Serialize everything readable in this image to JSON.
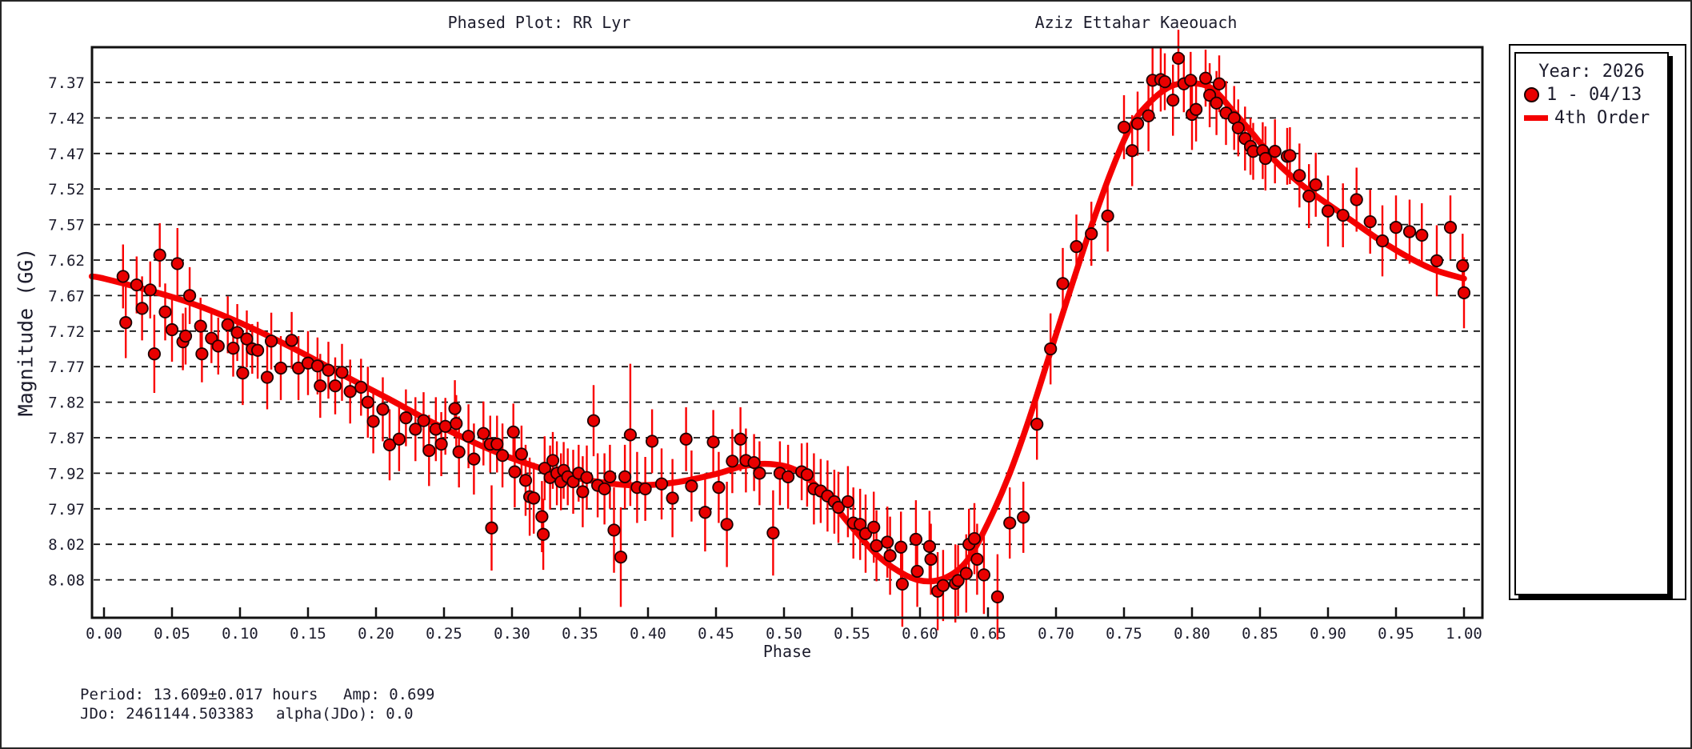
{
  "titles": {
    "left": "Phased Plot: RR Lyr",
    "right": "Aziz Ettahar Kaeouach"
  },
  "legend": {
    "year_label": "Year: 2026",
    "series_label": "1 - 04/13",
    "fit_label": "4th Order"
  },
  "footer": {
    "period": "Period: 13.609±0.017 hours",
    "amp": "Amp: 0.699",
    "jdo": "JDo: 2461144.503383",
    "alpha_jdo": "alpha(JDo): 0.0"
  },
  "colors": {
    "curve": "#f40000",
    "error_bar": "#fa0000",
    "marker_fill": "#e90000",
    "marker_edge": "#1c0000",
    "grid": "#141414",
    "axis": "#111111",
    "text": "#1c1c2c",
    "background": "#ffffff"
  },
  "chart_data": {
    "type": "scatter",
    "title": "Phased Plot: RR Lyr",
    "observer": "Aziz Ettahar Kaeouach",
    "xlabel": "Phase",
    "ylabel": "Magnitude (GG)",
    "y_axis_inverted": true,
    "grid": "dashed-horizontal",
    "legend_position": "right",
    "x_ticks": [
      "0.00",
      "0.05",
      "0.10",
      "0.15",
      "0.20",
      "0.25",
      "0.30",
      "0.35",
      "0.40",
      "0.45",
      "0.50",
      "0.55",
      "0.60",
      "0.65",
      "0.70",
      "0.75",
      "0.80",
      "0.85",
      "0.90",
      "0.95",
      "1.00"
    ],
    "y_ticks": [
      "7.37",
      "7.42",
      "7.47",
      "7.52",
      "7.57",
      "7.62",
      "7.67",
      "7.72",
      "7.77",
      "7.82",
      "7.87",
      "7.92",
      "7.97",
      "8.02",
      "8.08"
    ],
    "y_tick_start": 7.37,
    "y_tick_step": 0.05,
    "xlim": [
      -0.009,
      1.0135
    ],
    "ylim": [
      7.321,
      8.117
    ],
    "stats": {
      "period_hours": "13.609±0.017",
      "amp": 0.699,
      "jdo": 2461144.503383,
      "alpha_jdo": 0.0,
      "year": 2026,
      "series_date": "04/13"
    },
    "series": [
      {
        "name": "1 - 04/13",
        "points": [
          [
            0.014,
            7.643,
            0.045
          ],
          [
            0.016,
            7.708,
            0.05
          ],
          [
            0.024,
            7.655,
            0.04
          ],
          [
            0.028,
            7.688,
            0.045
          ],
          [
            0.034,
            7.662,
            0.04
          ],
          [
            0.037,
            7.752,
            0.055
          ],
          [
            0.041,
            7.613,
            0.045
          ],
          [
            0.045,
            7.693,
            0.04
          ],
          [
            0.05,
            7.718,
            0.045
          ],
          [
            0.054,
            7.625,
            0.05
          ],
          [
            0.058,
            7.735,
            0.04
          ],
          [
            0.06,
            7.727,
            0.04
          ],
          [
            0.063,
            7.67,
            0.04
          ],
          [
            0.071,
            7.713,
            0.04
          ],
          [
            0.072,
            7.752,
            0.04
          ],
          [
            0.079,
            7.73,
            0.035
          ],
          [
            0.084,
            7.741,
            0.04
          ],
          [
            0.091,
            7.711,
            0.04
          ],
          [
            0.095,
            7.744,
            0.04
          ],
          [
            0.098,
            7.722,
            0.04
          ],
          [
            0.102,
            7.779,
            0.045
          ],
          [
            0.105,
            7.731,
            0.04
          ],
          [
            0.109,
            7.745,
            0.035
          ],
          [
            0.113,
            7.747,
            0.04
          ],
          [
            0.12,
            7.785,
            0.045
          ],
          [
            0.123,
            7.734,
            0.04
          ],
          [
            0.13,
            7.772,
            0.045
          ],
          [
            0.138,
            7.733,
            0.04
          ],
          [
            0.143,
            7.772,
            0.045
          ],
          [
            0.15,
            7.765,
            0.045
          ],
          [
            0.157,
            7.769,
            0.04
          ],
          [
            0.159,
            7.797,
            0.045
          ],
          [
            0.165,
            7.775,
            0.04
          ],
          [
            0.17,
            7.797,
            0.04
          ],
          [
            0.175,
            7.778,
            0.04
          ],
          [
            0.181,
            7.805,
            0.045
          ],
          [
            0.189,
            7.799,
            0.04
          ],
          [
            0.194,
            7.82,
            0.05
          ],
          [
            0.198,
            7.847,
            0.045
          ],
          [
            0.205,
            7.83,
            0.045
          ],
          [
            0.21,
            7.88,
            0.05
          ],
          [
            0.217,
            7.872,
            0.045
          ],
          [
            0.222,
            7.842,
            0.04
          ],
          [
            0.229,
            7.858,
            0.045
          ],
          [
            0.235,
            7.846,
            0.04
          ],
          [
            0.239,
            7.888,
            0.05
          ],
          [
            0.244,
            7.858,
            0.045
          ],
          [
            0.248,
            7.879,
            0.045
          ],
          [
            0.251,
            7.854,
            0.04
          ],
          [
            0.258,
            7.829,
            0.04
          ],
          [
            0.259,
            7.85,
            0.04
          ],
          [
            0.261,
            7.89,
            0.05
          ],
          [
            0.268,
            7.868,
            0.045
          ],
          [
            0.272,
            7.9,
            0.05
          ],
          [
            0.279,
            7.864,
            0.045
          ],
          [
            0.284,
            7.879,
            0.04
          ],
          [
            0.285,
            7.997,
            0.06
          ],
          [
            0.289,
            7.879,
            0.04
          ],
          [
            0.293,
            7.895,
            0.045
          ],
          [
            0.301,
            7.862,
            0.04
          ],
          [
            0.302,
            7.918,
            0.05
          ],
          [
            0.307,
            7.893,
            0.04
          ],
          [
            0.31,
            7.93,
            0.05
          ],
          [
            0.313,
            7.953,
            0.055
          ],
          [
            0.316,
            7.955,
            0.05
          ],
          [
            0.322,
            7.981,
            0.05
          ],
          [
            0.323,
            8.006,
            0.05
          ],
          [
            0.324,
            7.913,
            0.045
          ],
          [
            0.328,
            7.926,
            0.045
          ],
          [
            0.33,
            7.902,
            0.04
          ],
          [
            0.333,
            7.92,
            0.045
          ],
          [
            0.336,
            7.932,
            0.04
          ],
          [
            0.338,
            7.916,
            0.04
          ],
          [
            0.341,
            7.925,
            0.04
          ],
          [
            0.345,
            7.932,
            0.045
          ],
          [
            0.349,
            7.92,
            0.04
          ],
          [
            0.352,
            7.946,
            0.05
          ],
          [
            0.355,
            7.926,
            0.045
          ],
          [
            0.36,
            7.846,
            0.05
          ],
          [
            0.363,
            7.937,
            0.045
          ],
          [
            0.368,
            7.942,
            0.05
          ],
          [
            0.372,
            7.925,
            0.045
          ],
          [
            0.375,
            8.0,
            0.06
          ],
          [
            0.38,
            8.038,
            0.07
          ],
          [
            0.383,
            7.925,
            0.045
          ],
          [
            0.387,
            7.866,
            0.1
          ],
          [
            0.392,
            7.94,
            0.05
          ],
          [
            0.398,
            7.942,
            0.045
          ],
          [
            0.403,
            7.875,
            0.045
          ],
          [
            0.41,
            7.935,
            0.05
          ],
          [
            0.418,
            7.955,
            0.055
          ],
          [
            0.428,
            7.872,
            0.045
          ],
          [
            0.432,
            7.938,
            0.05
          ],
          [
            0.442,
            7.975,
            0.055
          ],
          [
            0.448,
            7.876,
            0.045
          ],
          [
            0.452,
            7.94,
            0.05
          ],
          [
            0.458,
            7.992,
            0.06
          ],
          [
            0.462,
            7.903,
            0.045
          ],
          [
            0.468,
            7.872,
            0.045
          ],
          [
            0.472,
            7.902,
            0.045
          ],
          [
            0.478,
            7.905,
            0.04
          ],
          [
            0.482,
            7.92,
            0.045
          ],
          [
            0.492,
            8.004,
            0.06
          ],
          [
            0.497,
            7.92,
            0.045
          ],
          [
            0.503,
            7.925,
            0.045
          ],
          [
            0.513,
            7.918,
            0.04
          ],
          [
            0.517,
            7.922,
            0.045
          ],
          [
            0.522,
            7.942,
            0.05
          ],
          [
            0.527,
            7.945,
            0.045
          ],
          [
            0.532,
            7.952,
            0.05
          ],
          [
            0.537,
            7.96,
            0.045
          ],
          [
            0.54,
            7.968,
            0.05
          ],
          [
            0.547,
            7.96,
            0.05
          ],
          [
            0.551,
            7.99,
            0.05
          ],
          [
            0.556,
            7.992,
            0.05
          ],
          [
            0.56,
            8.005,
            0.055
          ],
          [
            0.566,
            7.996,
            0.05
          ],
          [
            0.568,
            8.022,
            0.05
          ],
          [
            0.576,
            8.017,
            0.05
          ],
          [
            0.578,
            8.036,
            0.055
          ],
          [
            0.586,
            8.024,
            0.05
          ],
          [
            0.587,
            8.076,
            0.06
          ],
          [
            0.597,
            8.013,
            0.055
          ],
          [
            0.598,
            8.058,
            0.05
          ],
          [
            0.607,
            8.023,
            0.05
          ],
          [
            0.608,
            8.041,
            0.05
          ],
          [
            0.613,
            8.086,
            0.055
          ],
          [
            0.617,
            8.078,
            0.05
          ],
          [
            0.626,
            8.075,
            0.055
          ],
          [
            0.628,
            8.071,
            0.05
          ],
          [
            0.634,
            8.061,
            0.055
          ],
          [
            0.636,
            8.02,
            0.05
          ],
          [
            0.64,
            8.012,
            0.05
          ],
          [
            0.642,
            8.041,
            0.05
          ],
          [
            0.647,
            8.063,
            0.055
          ],
          [
            0.657,
            8.094,
            0.06
          ],
          [
            0.666,
            7.99,
            0.05
          ],
          [
            0.676,
            7.982,
            0.05
          ],
          [
            0.686,
            7.851,
            0.05
          ],
          [
            0.696,
            7.745,
            0.05
          ],
          [
            0.705,
            7.653,
            0.05
          ],
          [
            0.715,
            7.601,
            0.045
          ],
          [
            0.726,
            7.583,
            0.045
          ],
          [
            0.738,
            7.558,
            0.05
          ],
          [
            0.75,
            7.433,
            0.045
          ],
          [
            0.756,
            7.466,
            0.05
          ],
          [
            0.76,
            7.428,
            0.045
          ],
          [
            0.768,
            7.417,
            0.05
          ],
          [
            0.771,
            7.367,
            0.045
          ],
          [
            0.777,
            7.366,
            0.045
          ],
          [
            0.78,
            7.369,
            0.04
          ],
          [
            0.786,
            7.395,
            0.05
          ],
          [
            0.79,
            7.336,
            0.04
          ],
          [
            0.794,
            7.372,
            0.04
          ],
          [
            0.799,
            7.367,
            0.04
          ],
          [
            0.8,
            7.415,
            0.05
          ],
          [
            0.803,
            7.408,
            0.045
          ],
          [
            0.81,
            7.364,
            0.04
          ],
          [
            0.813,
            7.388,
            0.045
          ],
          [
            0.818,
            7.399,
            0.045
          ],
          [
            0.82,
            7.372,
            0.04
          ],
          [
            0.825,
            7.413,
            0.045
          ],
          [
            0.831,
            7.42,
            0.045
          ],
          [
            0.834,
            7.434,
            0.04
          ],
          [
            0.839,
            7.449,
            0.045
          ],
          [
            0.843,
            7.46,
            0.04
          ],
          [
            0.845,
            7.467,
            0.04
          ],
          [
            0.852,
            7.466,
            0.04
          ],
          [
            0.854,
            7.477,
            0.045
          ],
          [
            0.861,
            7.467,
            0.045
          ],
          [
            0.87,
            7.474,
            0.04
          ],
          [
            0.872,
            7.473,
            0.04
          ],
          [
            0.879,
            7.501,
            0.045
          ],
          [
            0.886,
            7.53,
            0.045
          ],
          [
            0.891,
            7.514,
            0.045
          ],
          [
            0.9,
            7.551,
            0.05
          ],
          [
            0.911,
            7.557,
            0.045
          ],
          [
            0.921,
            7.535,
            0.045
          ],
          [
            0.931,
            7.566,
            0.045
          ],
          [
            0.94,
            7.593,
            0.05
          ],
          [
            0.95,
            7.574,
            0.045
          ],
          [
            0.96,
            7.58,
            0.045
          ],
          [
            0.969,
            7.585,
            0.045
          ],
          [
            0.98,
            7.621,
            0.05
          ],
          [
            0.99,
            7.574,
            0.045
          ],
          [
            0.999,
            7.628,
            0.045
          ],
          [
            1.0,
            7.666,
            0.05
          ]
        ]
      }
    ],
    "fit": {
      "name": "4th Order",
      "samples": [
        [
          -0.009,
          7.643
        ],
        [
          0.0,
          7.646
        ],
        [
          0.03,
          7.661
        ],
        [
          0.06,
          7.678
        ],
        [
          0.09,
          7.7
        ],
        [
          0.12,
          7.726
        ],
        [
          0.15,
          7.755
        ],
        [
          0.18,
          7.786
        ],
        [
          0.21,
          7.816
        ],
        [
          0.24,
          7.847
        ],
        [
          0.27,
          7.875
        ],
        [
          0.3,
          7.899
        ],
        [
          0.33,
          7.918
        ],
        [
          0.36,
          7.931
        ],
        [
          0.39,
          7.937
        ],
        [
          0.42,
          7.933
        ],
        [
          0.45,
          7.921
        ],
        [
          0.47,
          7.91
        ],
        [
          0.49,
          7.907
        ],
        [
          0.51,
          7.917
        ],
        [
          0.53,
          7.95
        ],
        [
          0.55,
          7.996
        ],
        [
          0.57,
          8.038
        ],
        [
          0.59,
          8.064
        ],
        [
          0.605,
          8.072
        ],
        [
          0.62,
          8.066
        ],
        [
          0.635,
          8.042
        ],
        [
          0.65,
          7.99
        ],
        [
          0.665,
          7.925
        ],
        [
          0.68,
          7.845
        ],
        [
          0.695,
          7.755
        ],
        [
          0.71,
          7.665
        ],
        [
          0.725,
          7.578
        ],
        [
          0.74,
          7.498
        ],
        [
          0.755,
          7.432
        ],
        [
          0.77,
          7.396
        ],
        [
          0.785,
          7.375
        ],
        [
          0.8,
          7.371
        ],
        [
          0.815,
          7.379
        ],
        [
          0.83,
          7.41
        ],
        [
          0.845,
          7.443
        ],
        [
          0.86,
          7.478
        ],
        [
          0.875,
          7.505
        ],
        [
          0.89,
          7.528
        ],
        [
          0.905,
          7.548
        ],
        [
          0.92,
          7.568
        ],
        [
          0.935,
          7.588
        ],
        [
          0.95,
          7.606
        ],
        [
          0.965,
          7.622
        ],
        [
          0.98,
          7.635
        ],
        [
          1.0,
          7.646
        ]
      ]
    }
  }
}
